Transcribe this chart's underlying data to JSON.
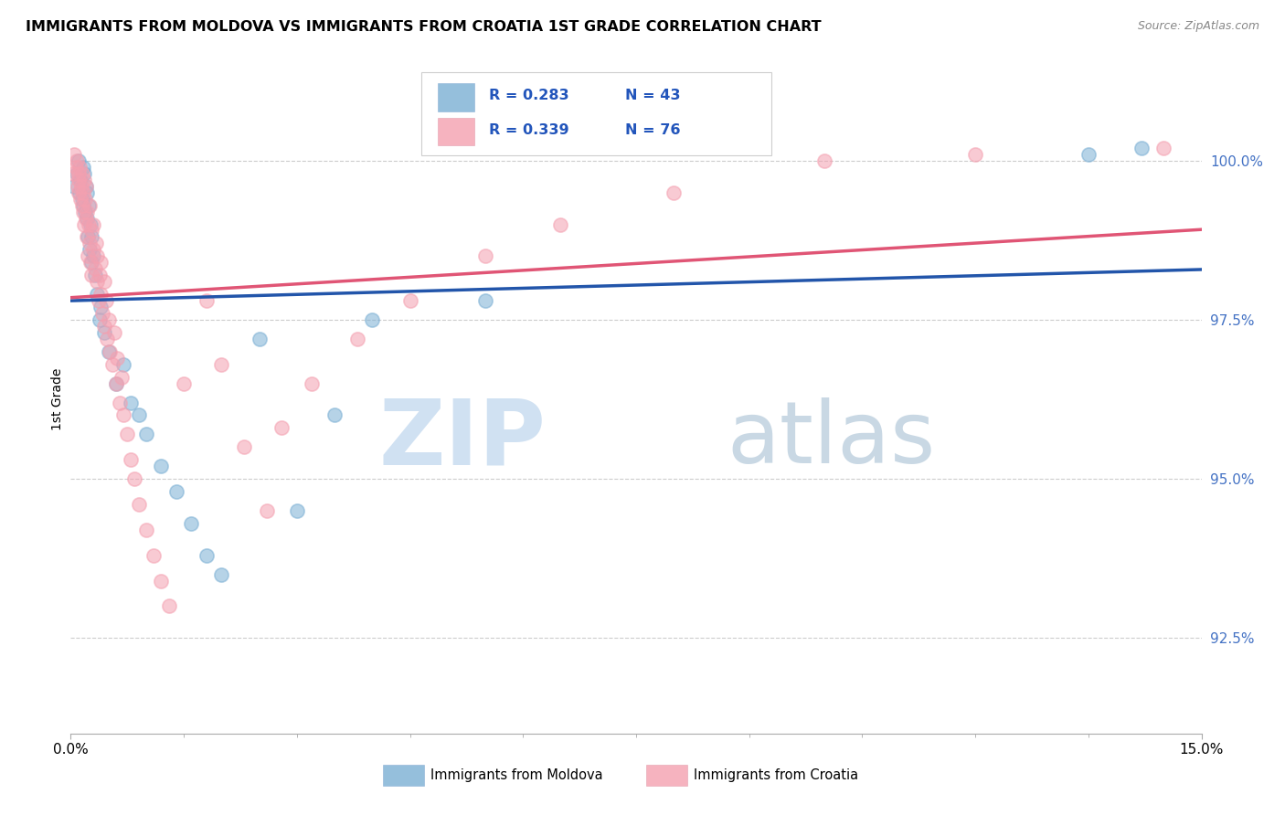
{
  "title": "IMMIGRANTS FROM MOLDOVA VS IMMIGRANTS FROM CROATIA 1ST GRADE CORRELATION CHART",
  "source": "Source: ZipAtlas.com",
  "ylabel": "1st Grade",
  "r_moldova": 0.283,
  "n_moldova": 43,
  "r_croatia": 0.339,
  "n_croatia": 76,
  "color_moldova": "#7BAFD4",
  "color_croatia": "#F4A0B0",
  "color_trendline_moldova": "#2255AA",
  "color_trendline_croatia": "#E05575",
  "xlim": [
    0.0,
    15.0
  ],
  "ylim": [
    91.0,
    101.5
  ],
  "right_yticks": [
    92.5,
    95.0,
    97.5,
    100.0
  ],
  "right_ytick_labels": [
    "92.5%",
    "95.0%",
    "97.5%",
    "100.0%"
  ],
  "watermark_zip": "ZIP",
  "watermark_atlas": "atlas",
  "legend_label_moldova": "Immigrants from Moldova",
  "legend_label_croatia": "Immigrants from Croatia",
  "moldova_x": [
    0.05,
    0.08,
    0.1,
    0.12,
    0.13,
    0.15,
    0.16,
    0.17,
    0.18,
    0.19,
    0.2,
    0.21,
    0.22,
    0.23,
    0.24,
    0.25,
    0.26,
    0.27,
    0.28,
    0.3,
    0.32,
    0.35,
    0.38,
    0.4,
    0.45,
    0.5,
    0.6,
    0.7,
    0.8,
    0.9,
    1.0,
    1.2,
    1.4,
    1.6,
    1.8,
    2.0,
    2.5,
    3.0,
    3.5,
    4.0,
    5.5,
    13.5,
    14.2
  ],
  "moldova_y": [
    99.6,
    99.8,
    100.0,
    99.5,
    99.7,
    99.4,
    99.9,
    99.3,
    99.8,
    99.2,
    99.6,
    99.1,
    99.5,
    98.8,
    99.3,
    98.6,
    99.0,
    98.4,
    98.8,
    98.5,
    98.2,
    97.9,
    97.5,
    97.7,
    97.3,
    97.0,
    96.5,
    96.8,
    96.2,
    96.0,
    95.7,
    95.2,
    94.8,
    94.3,
    93.8,
    93.5,
    97.2,
    94.5,
    96.0,
    97.5,
    97.8,
    100.1,
    100.2
  ],
  "croatia_x": [
    0.03,
    0.05,
    0.07,
    0.08,
    0.09,
    0.1,
    0.1,
    0.11,
    0.12,
    0.13,
    0.14,
    0.15,
    0.15,
    0.16,
    0.17,
    0.18,
    0.18,
    0.19,
    0.2,
    0.2,
    0.21,
    0.22,
    0.23,
    0.24,
    0.25,
    0.25,
    0.26,
    0.27,
    0.28,
    0.3,
    0.3,
    0.32,
    0.33,
    0.35,
    0.35,
    0.37,
    0.38,
    0.4,
    0.4,
    0.42,
    0.44,
    0.45,
    0.47,
    0.48,
    0.5,
    0.52,
    0.55,
    0.58,
    0.6,
    0.62,
    0.65,
    0.68,
    0.7,
    0.75,
    0.8,
    0.85,
    0.9,
    1.0,
    1.1,
    1.2,
    1.3,
    1.5,
    1.8,
    2.0,
    2.3,
    2.6,
    2.8,
    3.2,
    3.8,
    4.5,
    5.5,
    6.5,
    8.0,
    10.0,
    12.0,
    14.5
  ],
  "croatia_y": [
    99.8,
    100.1,
    99.9,
    100.0,
    99.6,
    99.8,
    99.5,
    99.7,
    99.9,
    99.4,
    99.6,
    99.8,
    99.3,
    99.5,
    99.2,
    99.7,
    99.0,
    99.4,
    99.6,
    99.1,
    98.8,
    99.2,
    98.5,
    99.0,
    98.7,
    99.3,
    98.4,
    98.9,
    98.2,
    98.6,
    99.0,
    98.3,
    98.7,
    98.1,
    98.5,
    97.8,
    98.2,
    97.9,
    98.4,
    97.6,
    98.1,
    97.4,
    97.8,
    97.2,
    97.5,
    97.0,
    96.8,
    97.3,
    96.5,
    96.9,
    96.2,
    96.6,
    96.0,
    95.7,
    95.3,
    95.0,
    94.6,
    94.2,
    93.8,
    93.4,
    93.0,
    96.5,
    97.8,
    96.8,
    95.5,
    94.5,
    95.8,
    96.5,
    97.2,
    97.8,
    98.5,
    99.0,
    99.5,
    100.0,
    100.1,
    100.2
  ]
}
